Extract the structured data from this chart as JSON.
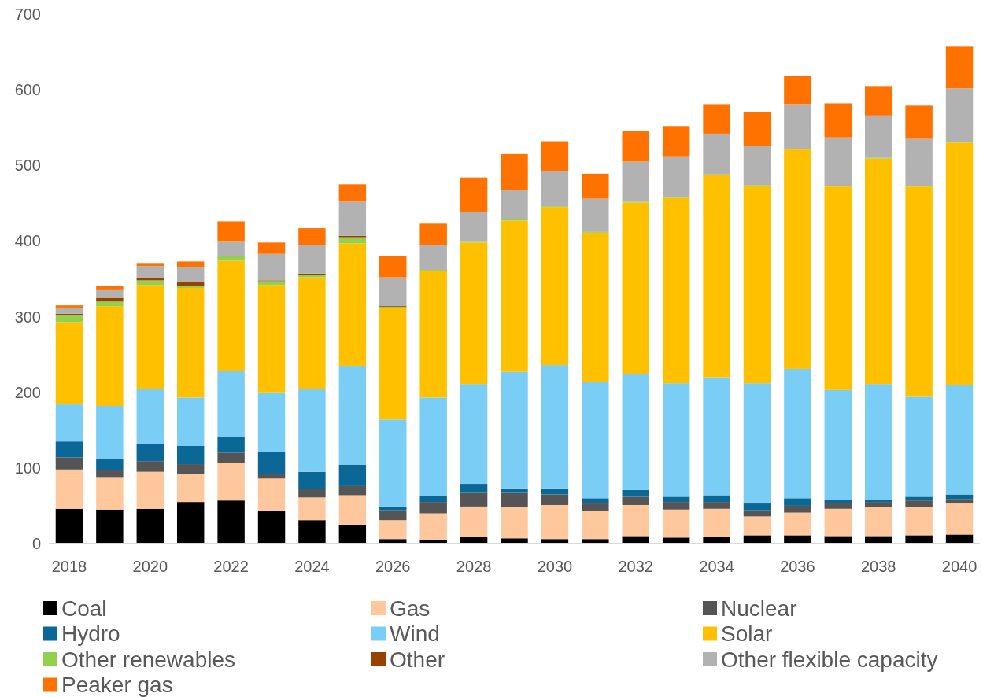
{
  "chart_data": {
    "type": "bar",
    "stacked": true,
    "legend": "bottom",
    "grid": false,
    "categories": [
      "2018",
      null,
      "2020",
      null,
      "2022",
      null,
      "2024",
      null,
      "2026",
      null,
      "2028",
      null,
      "2030",
      null,
      "2032",
      null,
      "2034",
      null,
      "2036",
      null,
      "2038",
      null,
      "2040"
    ],
    "ylim": [
      0,
      700
    ],
    "yticks": [
      0,
      100,
      200,
      300,
      400,
      500,
      600,
      700
    ],
    "series": [
      {
        "name": "Coal",
        "color": "#000000",
        "values": [
          46,
          45,
          46,
          55,
          57,
          43,
          31,
          25,
          6,
          5,
          9,
          7,
          6,
          6,
          10,
          8,
          9,
          11,
          11,
          10,
          10,
          11,
          12
        ]
      },
      {
        "name": "Gas",
        "color": "#ffc89c",
        "values": [
          52,
          43,
          49,
          37,
          50,
          43,
          30,
          39,
          25,
          35,
          40,
          41,
          45,
          37,
          41,
          37,
          37,
          25,
          30,
          36,
          38,
          37,
          41
        ]
      },
      {
        "name": "Nuclear",
        "color": "#555555",
        "values": [
          16,
          9,
          14,
          13,
          13,
          6,
          11,
          12,
          13,
          15,
          18,
          19,
          14,
          10,
          11,
          10,
          9,
          8,
          9,
          8,
          7,
          9,
          6
        ]
      },
      {
        "name": "Hydro",
        "color": "#0b6795",
        "values": [
          21,
          15,
          23,
          24,
          21,
          29,
          23,
          28,
          5,
          8,
          12,
          6,
          8,
          7,
          9,
          7,
          9,
          9,
          10,
          4,
          3,
          5,
          6
        ]
      },
      {
        "name": "Wind",
        "color": "#7acdf5",
        "values": [
          49,
          70,
          72,
          64,
          87,
          79,
          109,
          131,
          115,
          130,
          132,
          154,
          163,
          154,
          153,
          150,
          156,
          159,
          171,
          145,
          153,
          132,
          145
        ]
      },
      {
        "name": "Solar",
        "color": "#ffc000",
        "values": [
          109,
          132,
          138,
          145,
          146,
          142,
          148,
          162,
          147,
          168,
          187,
          200,
          209,
          197,
          227,
          245,
          267,
          261,
          290,
          269,
          298,
          278,
          320
        ]
      },
      {
        "name": "Other renewables",
        "color": "#92d050",
        "values": [
          9,
          6,
          6,
          3,
          6,
          5,
          3,
          8,
          2,
          1,
          2,
          2,
          1,
          1,
          1,
          1,
          1,
          1,
          1,
          1,
          1,
          1,
          1
        ]
      },
      {
        "name": "Other",
        "color": "#994200",
        "values": [
          2,
          5,
          4,
          5,
          0,
          1,
          2,
          2,
          1,
          0,
          0,
          0,
          0,
          0,
          0,
          0,
          0,
          0,
          0,
          0,
          0,
          0,
          0
        ]
      },
      {
        "name": "Other flexible capacity",
        "color": "#b2b2b2",
        "values": [
          8,
          10,
          15,
          20,
          20,
          35,
          38,
          45,
          38,
          33,
          38,
          39,
          47,
          44,
          53,
          54,
          54,
          52,
          59,
          64,
          56,
          62,
          71
        ]
      },
      {
        "name": "Peaker gas",
        "color": "#ff7200",
        "values": [
          3,
          6,
          4,
          7,
          26,
          15,
          22,
          23,
          28,
          28,
          46,
          47,
          39,
          33,
          40,
          40,
          39,
          44,
          37,
          45,
          39,
          44,
          55
        ]
      }
    ]
  }
}
